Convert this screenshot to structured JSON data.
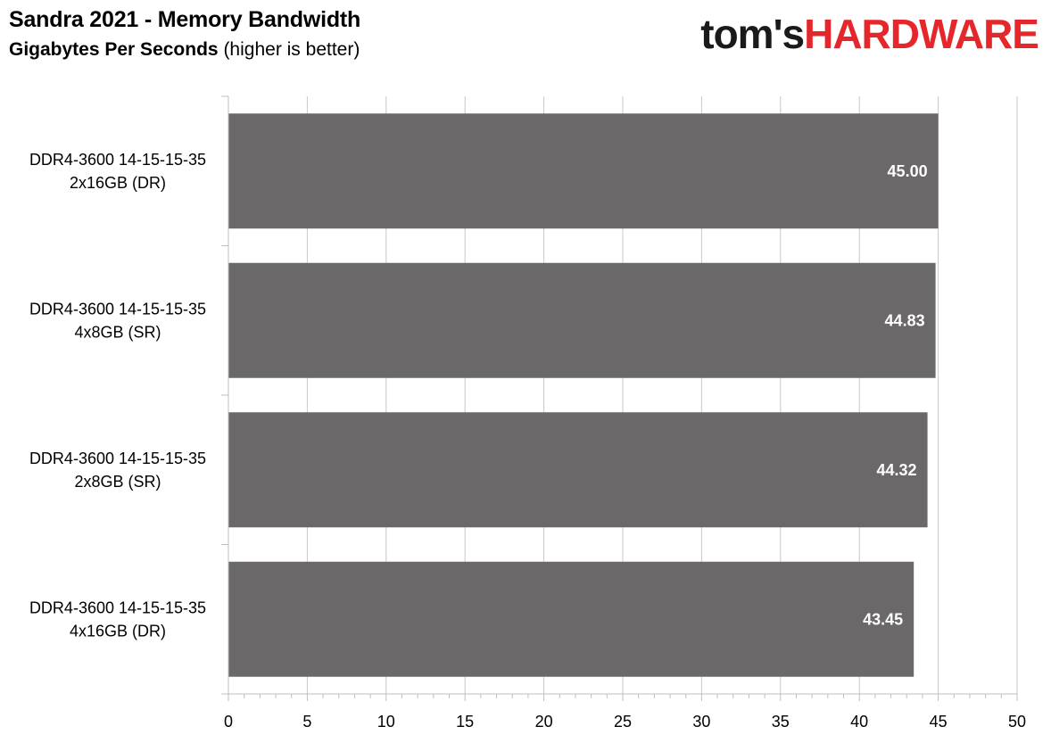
{
  "header": {
    "title": "Sandra 2021 - Memory Bandwidth",
    "subtitle_bold": "Gigabytes Per Seconds",
    "subtitle_rest": "(higher is better)"
  },
  "logo": {
    "part1": "tom's",
    "part2": "HARDWARE"
  },
  "colors": {
    "bar": "#6a6868",
    "grid": "#c8c8c8",
    "axis": "#bfbfbf",
    "logo_red": "#e5262b"
  },
  "chart_data": {
    "type": "bar",
    "orientation": "horizontal",
    "title": "Sandra 2021 - Memory Bandwidth",
    "subtitle": "Gigabytes Per Seconds (higher is better)",
    "categories": [
      [
        "DDR4-3600 14-15-15-35",
        "2x16GB (DR)"
      ],
      [
        "DDR4-3600 14-15-15-35",
        "4x8GB (SR)"
      ],
      [
        "DDR4-3600 14-15-15-35",
        "2x8GB (SR)"
      ],
      [
        "DDR4-3600 14-15-15-35",
        "4x16GB (DR)"
      ]
    ],
    "values": [
      45.0,
      44.83,
      44.32,
      43.45
    ],
    "data_labels": [
      "45.00",
      "44.83",
      "44.32",
      "43.45"
    ],
    "xlim": [
      0,
      50
    ],
    "xticks": [
      0,
      5,
      10,
      15,
      20,
      25,
      30,
      35,
      40,
      45,
      50
    ],
    "grid": true,
    "legend": "none"
  }
}
